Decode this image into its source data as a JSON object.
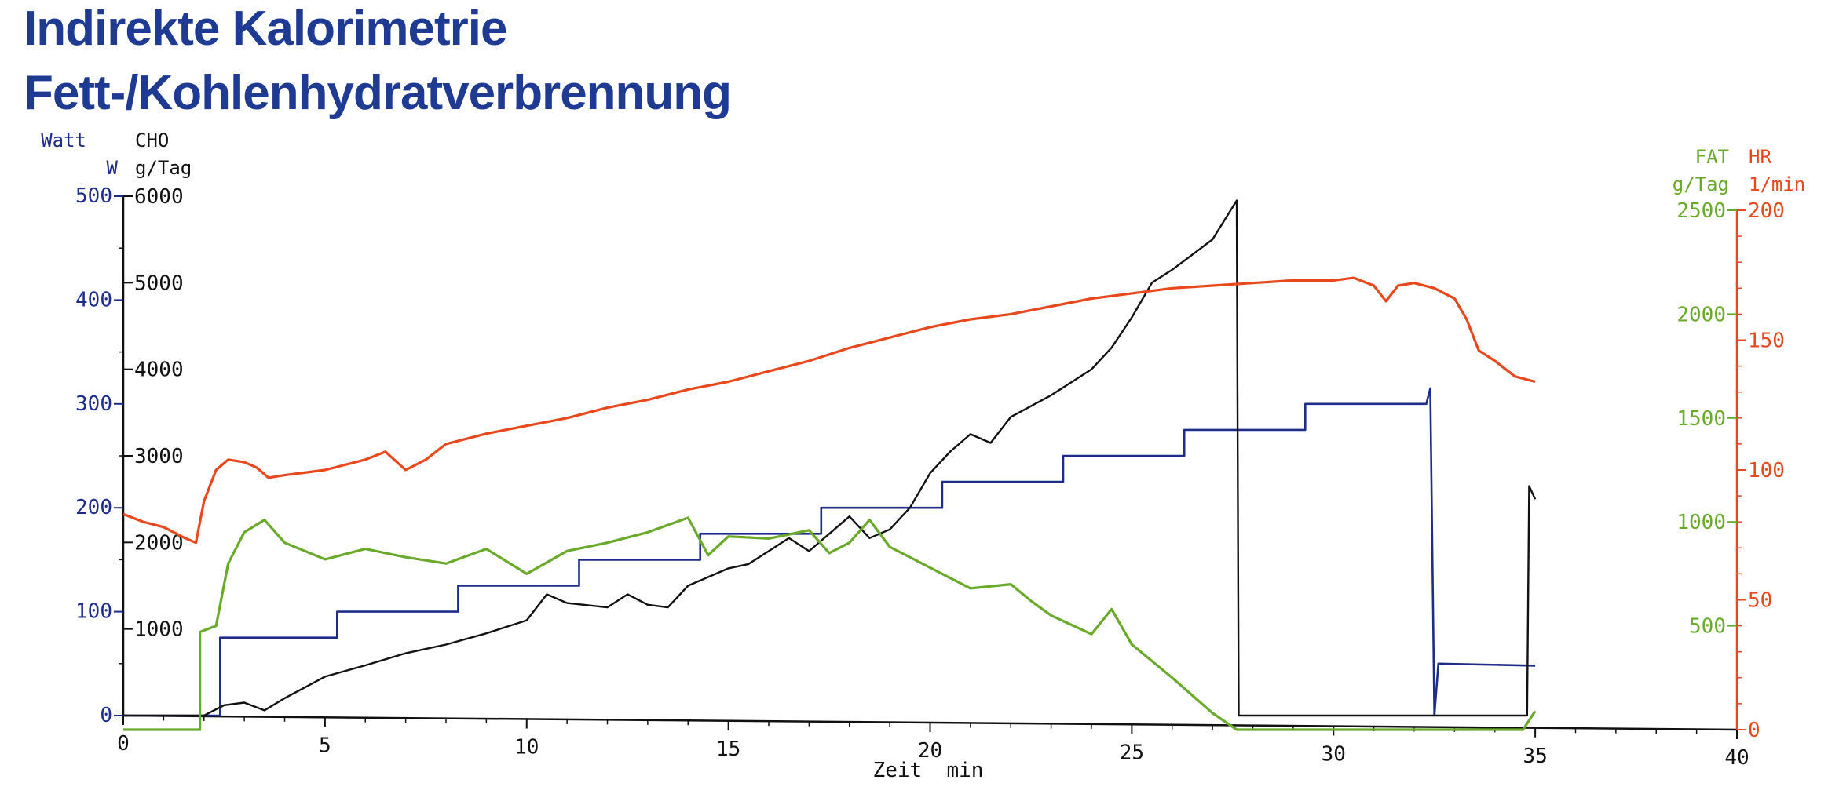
{
  "header": {
    "title_line1": "Indirekte Kalorimetrie",
    "title_line2": "Fett-/Kohlenhydratverbrennung"
  },
  "colors": {
    "title": "#1f3a93",
    "watt": "#1e2d8a",
    "cho": "#111111",
    "fat": "#6aaa2a",
    "hr": "#e8481c"
  },
  "chart_data": {
    "type": "line",
    "xlabel": "Zeit  min",
    "xlim": [
      0,
      40
    ],
    "x_ticks": [
      "0",
      "5",
      "10",
      "15",
      "20",
      "25",
      "30",
      "35",
      "40"
    ],
    "axes": {
      "watt": {
        "label1": "Watt",
        "label2": "W",
        "ylim": [
          0,
          500
        ],
        "ticks": [
          "0",
          "100",
          "200",
          "300",
          "400",
          "500"
        ]
      },
      "cho": {
        "label1": "CHO",
        "label2": "g/Tag",
        "ylim": [
          0,
          6000
        ],
        "ticks": [
          "1000",
          "2000",
          "3000",
          "4000",
          "5000",
          "6000"
        ]
      },
      "fat": {
        "label1": "FAT",
        "label2": "g/Tag",
        "ylim": [
          0,
          2500
        ],
        "ticks": [
          "500",
          "1000",
          "1500",
          "2000",
          "2500"
        ]
      },
      "hr": {
        "label1": "HR",
        "label2": "1/min",
        "ylim": [
          0,
          200
        ],
        "ticks": [
          "0",
          "50",
          "100",
          "150",
          "200"
        ]
      }
    },
    "series": [
      {
        "key": "watt",
        "x": [
          0,
          2.4,
          2.4,
          5.3,
          5.3,
          8.3,
          8.3,
          11.3,
          11.3,
          14.3,
          14.3,
          17.3,
          17.3,
          20.3,
          20.3,
          23.3,
          23.3,
          26.3,
          26.3,
          29.3,
          29.3,
          32.3,
          32.4,
          32.5,
          32.6,
          35
        ],
        "y": [
          0,
          0,
          75,
          75,
          100,
          100,
          125,
          125,
          150,
          150,
          175,
          175,
          200,
          200,
          225,
          225,
          250,
          250,
          275,
          275,
          300,
          300,
          315,
          0,
          50,
          48
        ]
      },
      {
        "key": "cho",
        "x": [
          0,
          2,
          2.5,
          3,
          3.5,
          4,
          5,
          6,
          7,
          8,
          9,
          10,
          10.5,
          11,
          12,
          12.5,
          13,
          13.5,
          14,
          15,
          15.5,
          16,
          16.5,
          17,
          17.5,
          18,
          18.5,
          19,
          19.5,
          20,
          20.5,
          21,
          21.5,
          22,
          23,
          24,
          24.5,
          25,
          25.5,
          26,
          27,
          27.6,
          27.65,
          34.8,
          34.85,
          35
        ],
        "y": [
          0,
          0,
          120,
          150,
          60,
          200,
          450,
          580,
          720,
          820,
          950,
          1100,
          1400,
          1300,
          1250,
          1400,
          1280,
          1250,
          1500,
          1700,
          1750,
          1900,
          2050,
          1900,
          2100,
          2300,
          2050,
          2150,
          2400,
          2800,
          3050,
          3250,
          3150,
          3450,
          3700,
          4000,
          4250,
          4600,
          5000,
          5150,
          5500,
          5950,
          0,
          0,
          2650,
          2500
        ]
      },
      {
        "key": "fat",
        "x": [
          0,
          1.9,
          1.9,
          2.3,
          2.6,
          3,
          3.5,
          4,
          5,
          6,
          7,
          8,
          9,
          10,
          11,
          12,
          13,
          14,
          14.5,
          15,
          16,
          17,
          17.5,
          18,
          18.5,
          19,
          20,
          21,
          22,
          22.5,
          23,
          24,
          24.5,
          25,
          26,
          27,
          27.6,
          34.7,
          35
        ],
        "y": [
          0,
          0,
          470,
          500,
          800,
          950,
          1010,
          900,
          820,
          870,
          830,
          800,
          870,
          750,
          860,
          900,
          950,
          1020,
          840,
          930,
          920,
          960,
          850,
          900,
          1010,
          880,
          780,
          680,
          700,
          620,
          550,
          460,
          580,
          410,
          250,
          80,
          0,
          0,
          90
        ]
      },
      {
        "key": "hr",
        "x": [
          0,
          0.5,
          1,
          1.5,
          1.8,
          2,
          2.3,
          2.6,
          3,
          3.3,
          3.6,
          4,
          5,
          6,
          6.5,
          7,
          7.5,
          8,
          9,
          10,
          11,
          12,
          13,
          14,
          15,
          16,
          17,
          18,
          19,
          20,
          21,
          22,
          23,
          24,
          25,
          26,
          27,
          28,
          29,
          30,
          30.5,
          31,
          31.3,
          31.6,
          32,
          32.5,
          33,
          33.3,
          33.6,
          34,
          34.5,
          35
        ],
        "y": [
          83,
          80,
          78,
          74,
          72,
          88,
          100,
          104,
          103,
          101,
          97,
          98,
          100,
          104,
          107,
          100,
          104,
          110,
          114,
          117,
          120,
          124,
          127,
          131,
          134,
          138,
          142,
          147,
          151,
          155,
          158,
          160,
          163,
          166,
          168,
          170,
          171,
          172,
          173,
          173,
          174,
          171,
          165,
          171,
          172,
          170,
          166,
          158,
          146,
          142,
          136,
          134
        ]
      }
    ]
  }
}
